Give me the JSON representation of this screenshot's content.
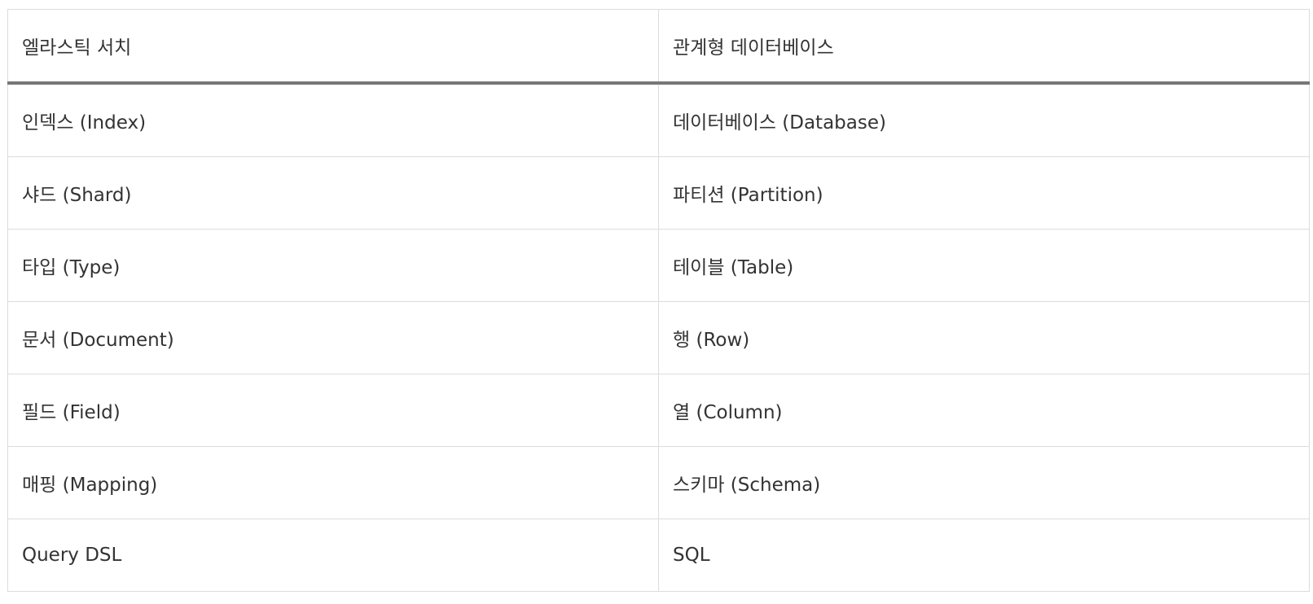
{
  "table": {
    "headers": [
      "엘라스틱 서치",
      "관계형 데이터베이스"
    ],
    "rows": [
      [
        "인덱스 (Index)",
        "데이터베이스 (Database)"
      ],
      [
        "샤드 (Shard)",
        "파티션 (Partition)"
      ],
      [
        "타입 (Type)",
        "테이블 (Table)"
      ],
      [
        "문서 (Document)",
        "행 (Row)"
      ],
      [
        "필드 (Field)",
        "열 (Column)"
      ],
      [
        "매핑 (Mapping)",
        "스키마 (Schema)"
      ],
      [
        "Query DSL",
        "SQL"
      ]
    ]
  }
}
